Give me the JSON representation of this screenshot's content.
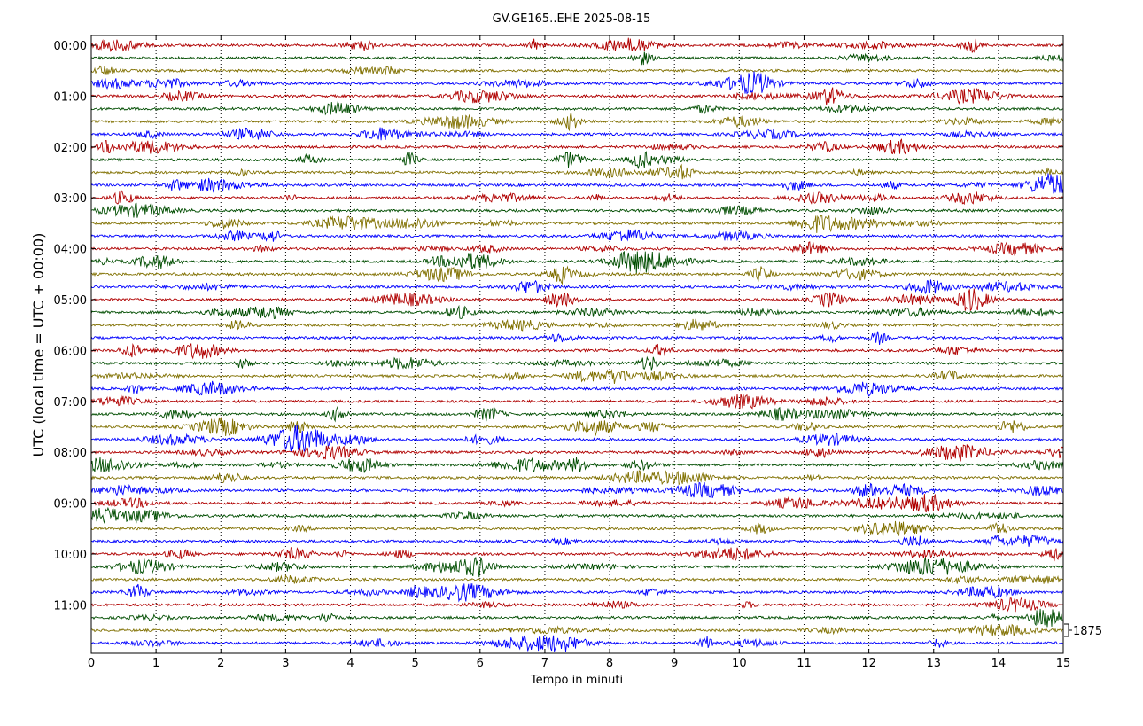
{
  "chart_data": {
    "type": "line",
    "title": "GV.GE165..EHE 2025-08-15",
    "xlabel": "Tempo in minuti",
    "ylabel": "UTC (local time = UTC + 00:00)",
    "xlim": [
      0,
      15
    ],
    "x_ticks": [
      "0",
      "1",
      "2",
      "3",
      "4",
      "5",
      "6",
      "7",
      "8",
      "9",
      "10",
      "11",
      "12",
      "13",
      "14",
      "15"
    ],
    "y_tick_labels": [
      "00:00",
      "01:00",
      "02:00",
      "03:00",
      "04:00",
      "05:00",
      "06:00",
      "07:00",
      "08:00",
      "09:00",
      "10:00",
      "11:00"
    ],
    "trace_interval_minutes": 15,
    "trace_count": 48,
    "trace_colors": [
      "#b00000",
      "#004d00",
      "#807000",
      "#0000ff"
    ],
    "scale_label": "1875",
    "grid": "vertical dotted at each minute"
  }
}
